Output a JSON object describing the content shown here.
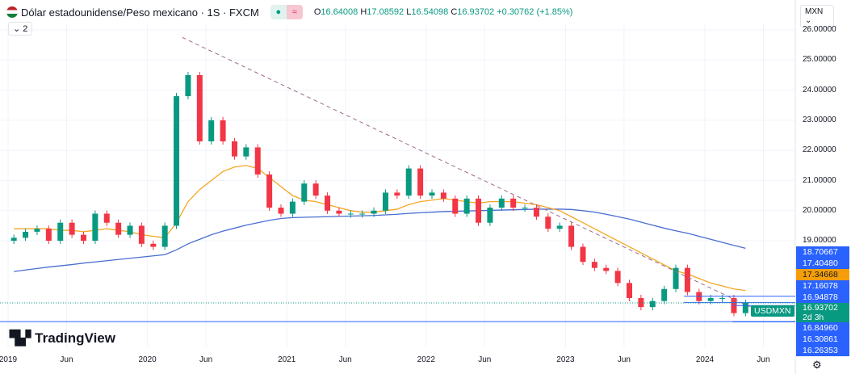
{
  "header": {
    "title": "Dólar estadounidense/Peso mexicano · 1S · FXCM",
    "open_label": "O",
    "open": "16.64008",
    "high_label": "H",
    "high": "17.08592",
    "low_label": "L",
    "low": "16.54098",
    "close_label": "C",
    "close": "16.93702",
    "change": "+0.30762 (+1.85%)",
    "indicator_dot": "●",
    "indicator_wave": "≈",
    "legend_toggle": "⌄ 2"
  },
  "currency": "MXN ⌄",
  "logo": "TradingView",
  "symbol_tag": "USDMXN",
  "settings_icon": "⚙",
  "colors": {
    "up": "#089981",
    "down": "#f23645",
    "ma_short": "#f5a623",
    "ma_long": "#4a6fd1",
    "trendline": "#9c6a8a",
    "badge": "#2962ff",
    "ma_badge": "#f59e0b"
  },
  "price_badges": [
    {
      "value": "18.70667",
      "kind": "line"
    },
    {
      "value": "17.40480",
      "kind": "line"
    },
    {
      "value": "17.34668",
      "kind": "ma"
    },
    {
      "value": "17.16078",
      "kind": "line"
    },
    {
      "value": "16.94878",
      "kind": "line"
    },
    {
      "value": "16.93702",
      "kind": "last",
      "countdown": "2d 3h"
    },
    {
      "value": "16.84960",
      "kind": "line"
    },
    {
      "value": "16.30861",
      "kind": "line"
    },
    {
      "value": "16.26353",
      "kind": "line"
    }
  ],
  "chart_data": {
    "type": "candlestick",
    "interval": "1S",
    "ylim": [
      15.9,
      26.2
    ],
    "yticks": [
      "26.00000",
      "25.00000",
      "24.00000",
      "23.00000",
      "22.00000",
      "21.00000",
      "20.00000",
      "19.00000"
    ],
    "ytick_values": [
      26,
      25,
      24,
      23,
      22,
      21,
      20,
      19
    ],
    "xticks": [
      {
        "label": "2019",
        "t": 2019.0
      },
      {
        "label": "Jun",
        "t": 2019.42
      },
      {
        "label": "2020",
        "t": 2020.0
      },
      {
        "label": "Jun",
        "t": 2020.42
      },
      {
        "label": "2021",
        "t": 2021.0
      },
      {
        "label": "Jun",
        "t": 2021.42
      },
      {
        "label": "2022",
        "t": 2022.0
      },
      {
        "label": "Jun",
        "t": 2022.42
      },
      {
        "label": "2023",
        "t": 2023.0
      },
      {
        "label": "Jun",
        "t": 2023.42
      },
      {
        "label": "2024",
        "t": 2024.0
      },
      {
        "label": "Jun",
        "t": 2024.42
      }
    ],
    "start": "2019-01",
    "closes": [
      19.1,
      19.3,
      19.4,
      19.0,
      19.6,
      19.2,
      19.0,
      19.9,
      19.6,
      19.2,
      19.5,
      18.9,
      18.8,
      19.5,
      23.8,
      24.5,
      22.3,
      23.0,
      22.3,
      21.8,
      22.1,
      21.2,
      20.1,
      19.9,
      20.3,
      20.9,
      20.5,
      20.0,
      19.9,
      19.9,
      19.9,
      20.0,
      20.6,
      20.5,
      21.4,
      20.5,
      20.6,
      20.4,
      19.9,
      20.4,
      19.6,
      20.1,
      20.4,
      20.1,
      20.1,
      19.8,
      19.4,
      19.5,
      18.8,
      18.3,
      18.1,
      18.0,
      17.6,
      17.1,
      16.8,
      17.0,
      17.4,
      18.1,
      17.3,
      17.0,
      17.1,
      17.1,
      16.6,
      16.94
    ],
    "ma_short": [
      19.4,
      19.4,
      19.4,
      19.4,
      19.35,
      19.35,
      19.3,
      19.35,
      19.4,
      19.35,
      19.3,
      19.2,
      19.15,
      19.1,
      19.6,
      20.3,
      20.7,
      21.0,
      21.3,
      21.45,
      21.5,
      21.4,
      21.1,
      20.8,
      20.5,
      20.35,
      20.3,
      20.2,
      20.1,
      20.0,
      19.95,
      19.95,
      20.0,
      20.05,
      20.2,
      20.3,
      20.35,
      20.4,
      20.35,
      20.3,
      20.25,
      20.3,
      20.3,
      20.3,
      20.25,
      20.2,
      20.1,
      20.0,
      19.8,
      19.6,
      19.4,
      19.2,
      19.0,
      18.8,
      18.6,
      18.4,
      18.2,
      18.0,
      17.9,
      17.75,
      17.6,
      17.5,
      17.4,
      17.35
    ],
    "ma_long": [
      17.98,
      18.03,
      18.08,
      18.13,
      18.17,
      18.21,
      18.26,
      18.3,
      18.34,
      18.38,
      18.42,
      18.46,
      18.5,
      18.54,
      18.7,
      18.9,
      19.05,
      19.2,
      19.32,
      19.42,
      19.52,
      19.6,
      19.68,
      19.74,
      19.77,
      19.78,
      19.79,
      19.8,
      19.81,
      19.82,
      19.83,
      19.84,
      19.86,
      19.88,
      19.91,
      19.93,
      19.95,
      19.97,
      19.98,
      19.99,
      20.0,
      20.01,
      20.02,
      20.03,
      20.04,
      20.05,
      20.05,
      20.05,
      20.04,
      20.0,
      19.95,
      19.88,
      19.8,
      19.72,
      19.62,
      19.52,
      19.42,
      19.33,
      19.25,
      19.15,
      19.05,
      18.95,
      18.85,
      18.75
    ],
    "trendline": {
      "from": {
        "t": 2020.25,
        "price": 25.75
      },
      "to": {
        "t": 2024.42,
        "price": 16.6
      }
    },
    "last_price": 16.93702
  }
}
